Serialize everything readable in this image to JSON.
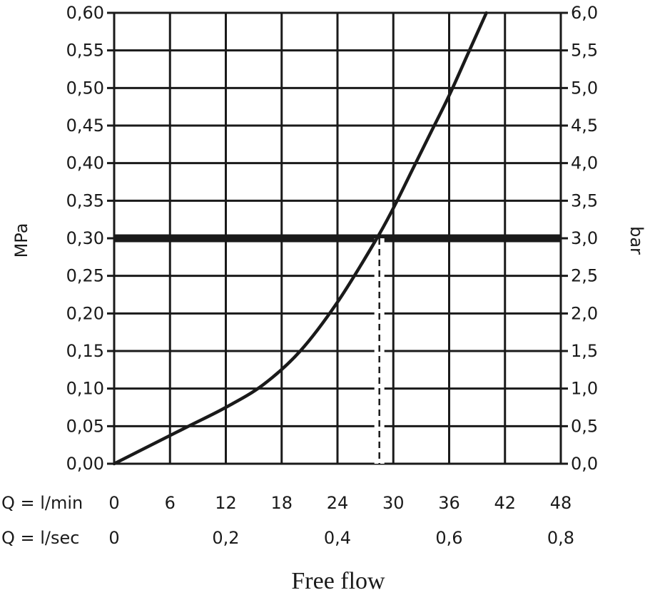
{
  "chart_data": {
    "type": "line",
    "xlabel": "Free flow",
    "ylabel_left": "MPa",
    "ylabel_right": "bar",
    "x_unit_label": "Q = l/min",
    "x_secondary_unit_label": "Q = l/sec",
    "xlim": [
      0,
      48
    ],
    "ylim": [
      0,
      0.6
    ],
    "grid": true,
    "x_ticks": [
      "0",
      "6",
      "12",
      "18",
      "24",
      "30",
      "36",
      "42",
      "48"
    ],
    "x_secondary_ticks": [
      {
        "value": 0,
        "label": "0"
      },
      {
        "value": 12,
        "label": "0,2"
      },
      {
        "value": 24,
        "label": "0,4"
      },
      {
        "value": 36,
        "label": "0,6"
      },
      {
        "value": 48,
        "label": "0,8"
      }
    ],
    "y_left_ticks": [
      "0,00",
      "0,05",
      "0,10",
      "0,15",
      "0,20",
      "0,25",
      "0,30",
      "0,35",
      "0,40",
      "0,45",
      "0,50",
      "0,55",
      "0,60"
    ],
    "y_right_ticks": [
      "0,0",
      "0,5",
      "1,0",
      "1,5",
      "2,0",
      "2,5",
      "3,0",
      "3,5",
      "4,0",
      "4,5",
      "5,0",
      "5,5",
      "6,0"
    ],
    "series": [
      {
        "x": [
          0,
          4,
          8,
          12,
          16,
          20,
          24,
          28,
          30,
          32,
          34,
          36,
          38,
          40
        ],
        "y": [
          0,
          0.025,
          0.05,
          0.075,
          0.105,
          0.15,
          0.215,
          0.295,
          0.34,
          0.39,
          0.44,
          0.49,
          0.545,
          0.6
        ]
      }
    ],
    "reference_line": {
      "y": 0.3
    },
    "marker_line": {
      "x": 28.5,
      "y": 0.3
    }
  }
}
